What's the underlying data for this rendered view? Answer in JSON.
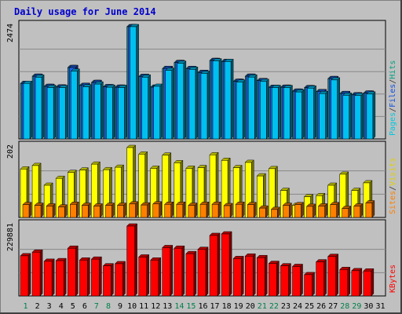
{
  "chart_data": {
    "type": "bar",
    "title": "Daily usage for June 2014",
    "categories": [
      "1",
      "2",
      "3",
      "4",
      "5",
      "6",
      "7",
      "8",
      "9",
      "10",
      "11",
      "12",
      "13",
      "14",
      "15",
      "16",
      "17",
      "18",
      "19",
      "20",
      "21",
      "22",
      "23",
      "24",
      "25",
      "26",
      "27",
      "28",
      "29",
      "30",
      "31"
    ],
    "weekend_days": [
      "1",
      "7",
      "8",
      "14",
      "15",
      "21",
      "22",
      "28",
      "29"
    ],
    "panels": {
      "hits_files_pages": {
        "max_label": "2474",
        "max_value": 2474,
        "legend": [
          "Pages",
          "/",
          "Files",
          "/",
          "Hits"
        ],
        "legend_colors": [
          "#00c8e0",
          "#333333",
          "#1050e0",
          "#333333",
          "#00a080"
        ],
        "series": [
          {
            "name": "Hits",
            "color": "#1e7896",
            "values": [
              1224,
              1382,
              1158,
              1143,
              1574,
              1179,
              1245,
              1151,
              1140,
              2474,
              1377,
              1141,
              1553,
              1684,
              1550,
              1464,
              1729,
              1706,
              1270,
              1382,
              1284,
              1137,
              1139,
              1053,
              1130,
              1041,
              1330,
              1000,
              971,
              1010
            ]
          },
          {
            "name": "Files",
            "color": "#2060e8",
            "values": [
              1224,
              1382,
              1158,
              1143,
              1574,
              1179,
              1245,
              1151,
              1140,
              2474,
              1377,
              1141,
              1553,
              1684,
              1550,
              1464,
              1729,
              1706,
              1270,
              1382,
              1284,
              1137,
              1139,
              1053,
              1130,
              1041,
              1330,
              1000,
              971,
              1010
            ]
          },
          {
            "name": "Pages",
            "color": "#00c0f0",
            "values": [
              1224,
              1360,
              1133,
              1130,
              1491,
              1147,
              1209,
              1139,
              1132,
              2474,
              1361,
              1160,
              1511,
              1667,
              1533,
              1445,
              1717,
              1706,
              1250,
              1363,
              1266,
              1133,
              1129,
              1035,
              1119,
              1000,
              1300,
              962,
              956,
              989
            ]
          }
        ]
      },
      "visits_sites": {
        "max_label": "202",
        "max_value": 202,
        "legend": [
          "Sites",
          "/",
          "Visits"
        ],
        "legend_colors": [
          "#ff8000",
          "#333333",
          "#e0d000"
        ],
        "series": [
          {
            "name": "Visits",
            "color": "#ffff00",
            "values": [
              140,
              150,
              93,
              113,
              130,
              137,
              154,
              138,
              145,
              202,
              183,
              142,
              180,
              158,
              142,
              144,
              181,
              165,
              144,
              159,
              120,
              141,
              78,
              35,
              60,
              63,
              93,
              125,
              78,
              100
            ]
          },
          {
            "name": "Sites",
            "color": "#ff8000",
            "values": [
              37,
              35,
              33,
              30,
              38,
              35,
              33,
              35,
              35,
              39,
              36,
              39,
              38,
              38,
              35,
              38,
              38,
              34,
              38,
              37,
              27,
              23,
              35,
              37,
              32,
              33,
              37,
              26,
              33,
              42
            ]
          }
        ]
      },
      "kbytes": {
        "max_label": "229881",
        "max_value": 229881,
        "legend": [
          "KBytes"
        ],
        "legend_colors": [
          "#ff0000"
        ],
        "series": [
          {
            "name": "KBytes",
            "color": "#ff0000",
            "values": [
              132000,
              144000,
              114000,
              116000,
              157000,
              118000,
              121000,
              99000,
              106000,
              229881,
              128000,
              118000,
              159000,
              157000,
              139000,
              153000,
              199000,
              204000,
              123000,
              131000,
              126000,
              107000,
              99000,
              97000,
              70000,
              112000,
              130000,
              87000,
              83000,
              82000
            ]
          }
        ]
      }
    }
  }
}
